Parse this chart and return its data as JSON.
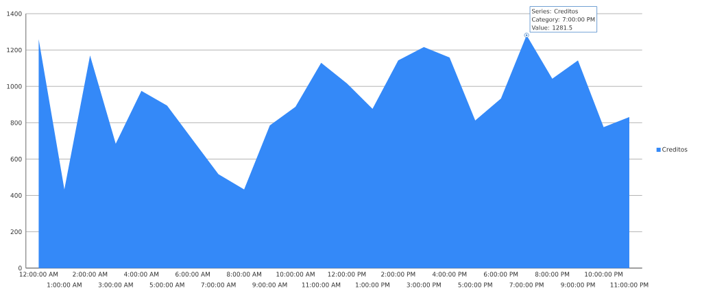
{
  "chart_data": {
    "type": "area",
    "categories": [
      "12:00:00 AM",
      "1:00:00 AM",
      "2:00:00 AM",
      "3:00:00 AM",
      "4:00:00 AM",
      "5:00:00 AM",
      "6:00:00 AM",
      "7:00:00 AM",
      "8:00:00 AM",
      "9:00:00 AM",
      "10:00:00 AM",
      "11:00:00 AM",
      "12:00:00 PM",
      "1:00:00 PM",
      "2:00:00 PM",
      "3:00:00 PM",
      "4:00:00 PM",
      "5:00:00 PM",
      "6:00:00 PM",
      "7:00:00 PM",
      "8:00:00 PM",
      "9:00:00 PM",
      "10:00:00 PM",
      "11:00:00 PM"
    ],
    "series": [
      {
        "name": "Creditos",
        "color": "#3489f8",
        "values": [
          1260,
          433,
          1170,
          684,
          975,
          894,
          705,
          517,
          433,
          785,
          888,
          1130,
          1017,
          876,
          1143,
          1216,
          1159,
          812,
          933,
          1281.5,
          1042,
          1143,
          776,
          831
        ]
      }
    ],
    "ylim": [
      0,
      1400
    ],
    "yticks": [
      0,
      200,
      400,
      600,
      800,
      1000,
      1200,
      1400
    ],
    "grid": "y",
    "legend": "right",
    "annotations": [
      "Series: Creditos",
      "Category: 7:00:00 PM",
      {
        "text": "Value: 1281.5",
        "x": "7:00:00 PM",
        "y": 1281.5
      }
    ]
  }
}
